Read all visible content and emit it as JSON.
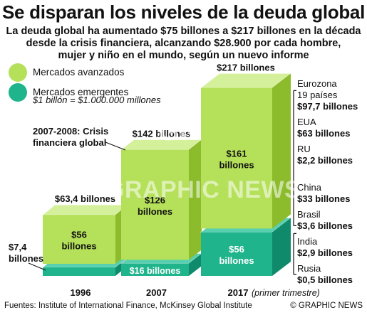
{
  "title": "Se disparan los niveles de la deuda global",
  "subtitle_lines": [
    "La deuda global ha aumentado $75 billones a $217 billones en la década",
    "desde la crisis financiera, alcanzando $28.900 por cada hombre,",
    "mujer y niño en el mundo, según un nuevo informe"
  ],
  "legend": {
    "advanced": "Mercados avanzados",
    "emerging": "Mercados emergentes",
    "note": "$1 billón = $1.000.000 millones"
  },
  "colors": {
    "advanced": "#b5e05a",
    "advanced_side": "#8cbc2c",
    "advanced_top": "#d4f09a",
    "emerging": "#1fb48c",
    "emerging_side": "#0f8a6a",
    "emerging_top": "#56d0ae",
    "accent": "#000000"
  },
  "annotation": "2007-2008: Crisis financiera global",
  "chart_data": {
    "type": "bar",
    "stacked": true,
    "unit": "$ billones",
    "categories": [
      "1996",
      "2007",
      "2017"
    ],
    "category_note": "(primer trimestre)",
    "series": [
      {
        "name": "Mercados emergentes",
        "values": [
          7.4,
          16,
          56
        ],
        "labels": [
          "$7,4 billones",
          "$16 billones",
          "$56 billones"
        ]
      },
      {
        "name": "Mercados avanzados",
        "values": [
          56,
          126,
          161
        ],
        "labels": [
          "$56 billones",
          "$126 billones",
          "$161 billones"
        ]
      }
    ],
    "totals": [
      63.4,
      142,
      217
    ],
    "total_labels": [
      "$63,4 billones",
      "$142 billones",
      "$217 billones"
    ]
  },
  "breakdown_advanced": [
    {
      "name": "Eurozona",
      "sub": "19 países",
      "value": "$97,7 billones"
    },
    {
      "name": "EUA",
      "value": "$63 billones"
    },
    {
      "name": "RU",
      "value": "$2,2 billones"
    }
  ],
  "breakdown_emerging": [
    {
      "name": "China",
      "value": "$33 billones"
    },
    {
      "name": "Brasil",
      "value": "$3,6 billones"
    },
    {
      "name": "India",
      "value": "$2,9 billones"
    },
    {
      "name": "Rusia",
      "value": "$0,5 billones"
    }
  ],
  "footer": {
    "source": "Fuentes: Institute of International Finance, McKinsey Global Institute",
    "credit": "© GRAPHIC NEWS"
  },
  "watermark": "GRAPHIC NEWS",
  "watermark_logo": "GN"
}
